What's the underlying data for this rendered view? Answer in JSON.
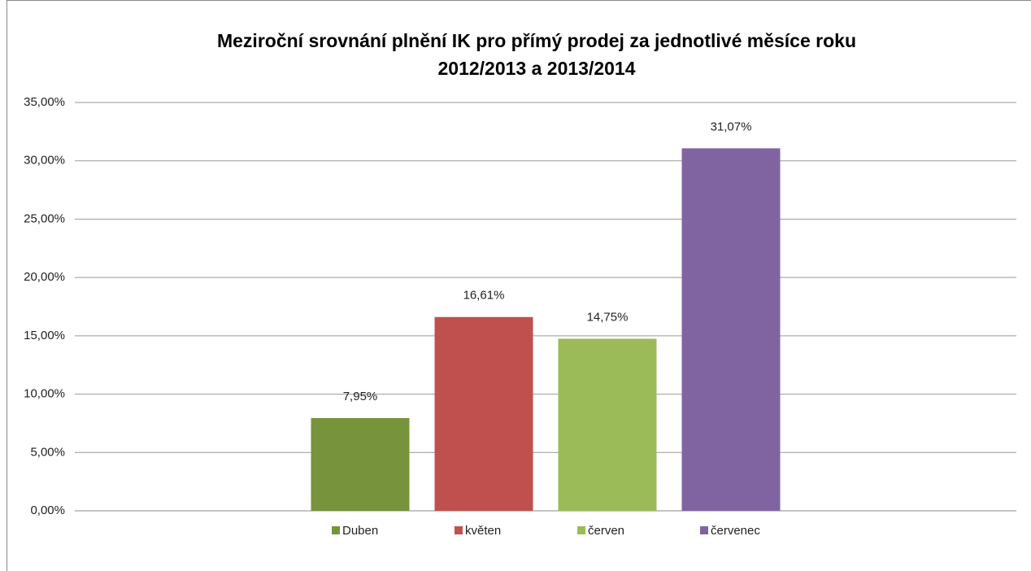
{
  "chart_data": {
    "type": "bar",
    "title": [
      "Meziroční srovnání plnění IK pro přímý prodej za jednotlivé měsíce roku",
      "2012/2013 a 2013/2014"
    ],
    "categories": [
      null
    ],
    "series": [
      {
        "name": "Duben",
        "color": "#77933c",
        "values": [
          7.95
        ],
        "value_labels": [
          "7,95%"
        ]
      },
      {
        "name": "květen",
        "color": "#c0504d",
        "values": [
          16.61
        ],
        "value_labels": [
          "16,61%"
        ]
      },
      {
        "name": "červen",
        "color": "#9bbb59",
        "values": [
          14.75
        ],
        "value_labels": [
          "14,75%"
        ]
      },
      {
        "name": "červenec",
        "color": "#8064a2",
        "values": [
          31.07
        ],
        "value_labels": [
          "31,07%"
        ]
      }
    ],
    "ylim": [
      0,
      35
    ],
    "yticks": [
      {
        "value": 0,
        "label": "0,00%"
      },
      {
        "value": 5,
        "label": "5,00%"
      },
      {
        "value": 10,
        "label": "10,00%"
      },
      {
        "value": 15,
        "label": "15,00%"
      },
      {
        "value": 20,
        "label": "20,00%"
      },
      {
        "value": 25,
        "label": "25,00%"
      },
      {
        "value": 30,
        "label": "30,00%"
      },
      {
        "value": 35,
        "label": "35,00%"
      }
    ],
    "grid": true,
    "legend": "bottom"
  }
}
